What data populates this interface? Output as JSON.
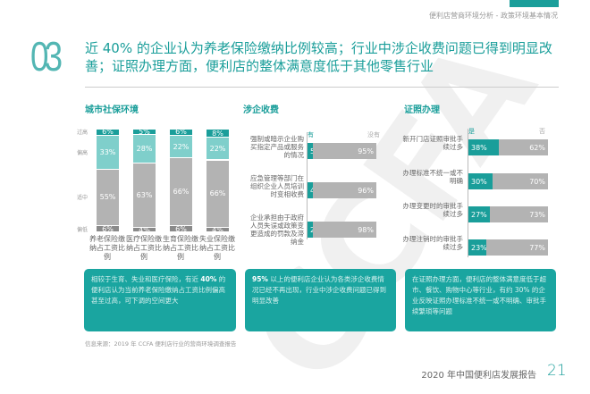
{
  "header": {
    "breadcrumb": "便利店营商环境分析 - 政策环境基本情况",
    "section_number": "03",
    "title": "近 40% 的企业认为养老保险缴纳比例较高；行业中涉企收费问题已得到明显改善；证照办理方面，便利店的整体满意度低于其他零售行业"
  },
  "colors": {
    "accent": "#1a9e9a",
    "light": "#7fcfcb",
    "gray": "#b3b3b3",
    "dark_gray": "#8a8a8a"
  },
  "watermark": "CCFA",
  "chart_data": [
    {
      "type": "bar",
      "stacked": true,
      "title": "城市社保环境",
      "levels": [
        "过高",
        "偏高",
        "适中",
        "偏低"
      ],
      "categories": [
        "养老保险缴纳占工资比例",
        "医疗保险缴纳占工资比例",
        "生育保险缴纳占工资比例",
        "失业保险缴纳占工资比例"
      ],
      "series": [
        {
          "name": "过高",
          "values": [
            6,
            5,
            6,
            8
          ],
          "labels": [
            "6%",
            "5%",
            "6%",
            "8%"
          ]
        },
        {
          "name": "偏高",
          "values": [
            33,
            28,
            22,
            22
          ],
          "labels": [
            "33%",
            "28%",
            "22%",
            "22%"
          ]
        },
        {
          "name": "适中",
          "values": [
            55,
            63,
            66,
            66
          ],
          "labels": [
            "55%",
            "63%",
            "66%",
            "66%"
          ]
        },
        {
          "name": "偏低",
          "values": [
            6,
            4,
            6,
            4
          ],
          "labels": [
            "6%",
            "4%",
            "6%",
            "4%"
          ]
        }
      ]
    },
    {
      "type": "bar",
      "orientation": "horizontal",
      "stacked": true,
      "title": "涉企收费",
      "legend": [
        "有",
        "没有"
      ],
      "categories": [
        "强制或暗示企业购买指定产品或服务的情况",
        "应急管理等部门在组织企业人员培训时变相收费",
        "企业承担由于政府人员失误或政策变更造成的罚款及滞纳金"
      ],
      "series": [
        {
          "name": "有",
          "values": [
            5,
            4,
            2
          ],
          "labels": [
            "5%",
            "4%",
            "2%"
          ]
        },
        {
          "name": "没有",
          "values": [
            95,
            96,
            98
          ],
          "labels": [
            "95%",
            "96%",
            "98%"
          ]
        }
      ]
    },
    {
      "type": "bar",
      "orientation": "horizontal",
      "stacked": true,
      "title": "证照办理",
      "legend": [
        "是",
        "否"
      ],
      "categories": [
        "新开门店证照审批手续过多",
        "办理标准不统一或不明确",
        "办理变更时的审批手续过多",
        "办理注销时的审批手续过多"
      ],
      "series": [
        {
          "name": "是",
          "values": [
            38,
            30,
            27,
            23
          ],
          "labels": [
            "38%",
            "30%",
            "27%",
            "23%"
          ]
        },
        {
          "name": "否",
          "values": [
            62,
            70,
            73,
            77
          ],
          "labels": [
            "62%",
            "70%",
            "73%",
            "77%"
          ]
        }
      ]
    }
  ],
  "boxes": [
    {
      "pre": "相较于生育、失业和医疗保险，有近 ",
      "bold": "40%",
      "post": " 的便利店认为当前养老保险缴纳占工资比例偏高甚至过高，可下调的空间更大"
    },
    {
      "pre": "",
      "bold": "95%",
      "post": " 以上的便利店企业认为各类涉企收费情况已经不再出现，行业中涉企收费问题已得到明显改善"
    },
    {
      "pre": "在证照办理方面，便利店的整体满意度低于超市、餐饮、购物中心等行业，有约 30% 的企业反映证照办理标准不统一或不明确、审批手续繁琐等问题",
      "bold": "",
      "post": ""
    }
  ],
  "footer": {
    "source": "信息来源：2019 年 CCFA 便利店行业的营商环境调查报告",
    "report": "2020 年中国便利店发展报告",
    "page": "21"
  }
}
